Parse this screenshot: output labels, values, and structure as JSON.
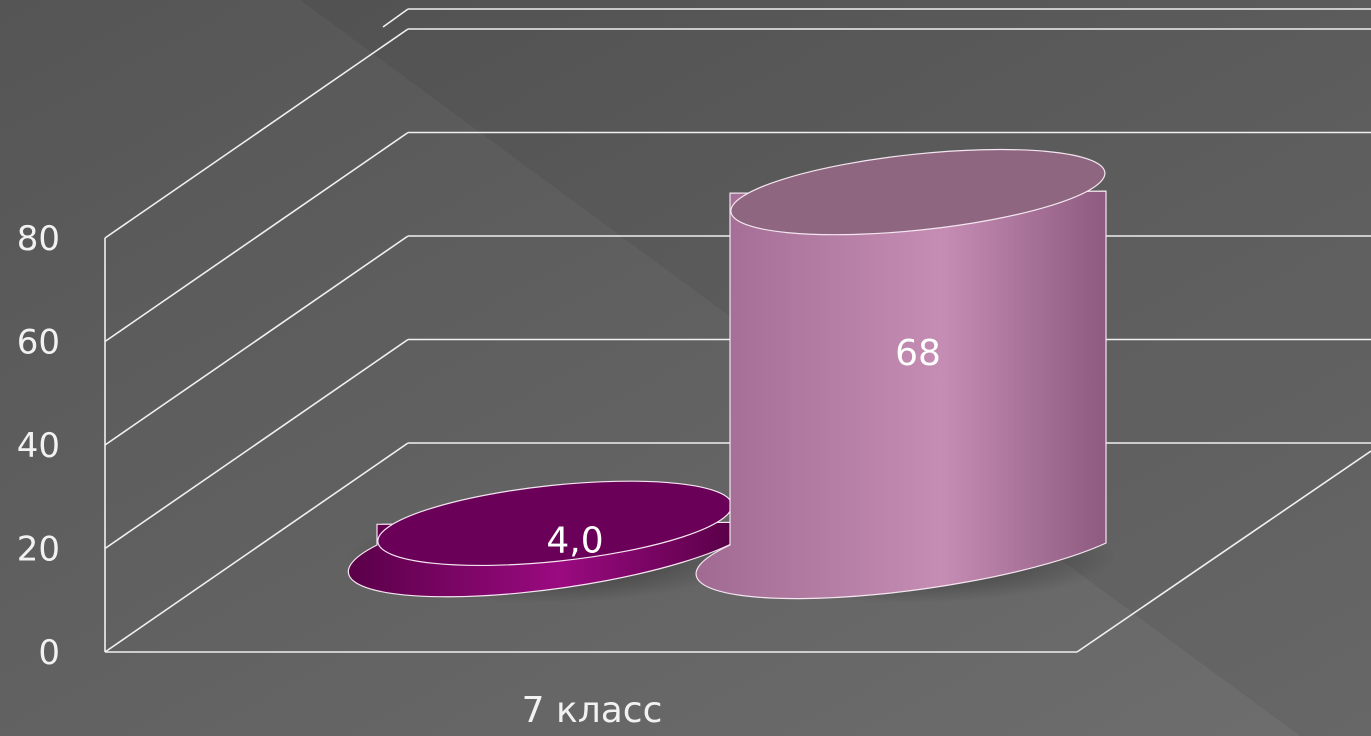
{
  "chart_data": {
    "type": "bar",
    "style": "3d-cylinder",
    "categories": [
      "7 класс"
    ],
    "series": [
      {
        "values": [
          4.0
        ],
        "label": "4,0",
        "color": "#8a0a6e"
      },
      {
        "values": [
          68
        ],
        "label": "68",
        "color": "#c48ab0"
      }
    ],
    "title": "",
    "xlabel": "",
    "ylabel": "",
    "ylim": [
      0,
      80
    ],
    "yticks": [
      "0",
      "20",
      "40",
      "60",
      "80"
    ],
    "grid": true,
    "legend": "none"
  }
}
